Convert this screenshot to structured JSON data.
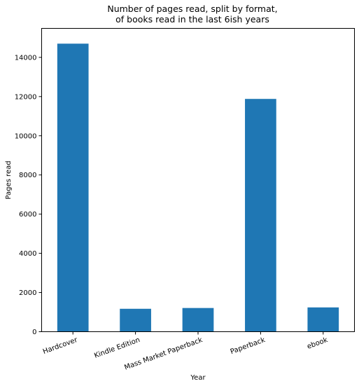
{
  "chart_data": {
    "type": "bar",
    "title_lines": [
      "Number of pages read, split by format,",
      "of books read in the last 6ish years"
    ],
    "xlabel": "Year",
    "ylabel": "Pages read",
    "categories": [
      "Hardcover",
      "Kindle Edition",
      "Mass Market Paperback",
      "Paperback",
      "ebook"
    ],
    "values": [
      14700,
      1170,
      1210,
      11880,
      1240
    ],
    "ylim": [
      0,
      15480
    ],
    "yticks": [
      0,
      2000,
      4000,
      6000,
      8000,
      10000,
      12000,
      14000
    ],
    "bar_color": "#1f77b4",
    "grid": false,
    "legend": "none",
    "xtick_rotation": -20
  }
}
